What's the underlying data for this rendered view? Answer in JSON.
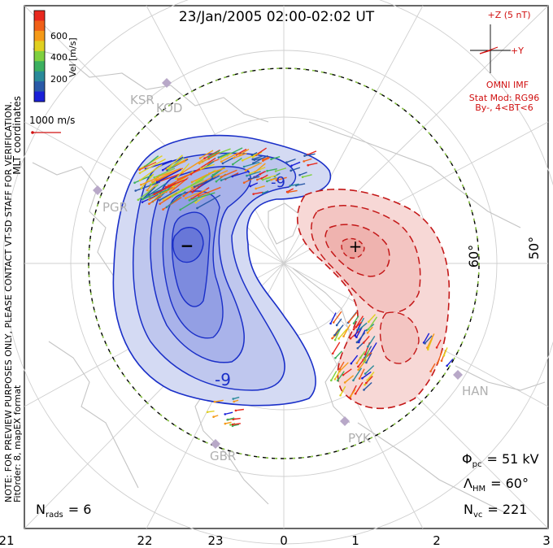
{
  "title": "23/Jan/2005 02:00-02:02 UT",
  "coords_label": "MLT coordinates",
  "colorbar": {
    "label": "Vel [m/s]",
    "ticks": [
      "600",
      "400",
      "200"
    ],
    "colors": [
      "#e8281e",
      "#f06018",
      "#f59a18",
      "#e0d020",
      "#7fd040",
      "#3cb060",
      "#2a8a9a",
      "#2a5aa8",
      "#1a20d8"
    ]
  },
  "ref_vector": {
    "label": "1000 m/s"
  },
  "side_notice": "NOTE: FOR PREVIEW PURPOSES ONLY, PLEASE CONTACT VT-SD STAFF FOR VERIFICATION.",
  "fit_order": "FitOrder: 8, mapEX format",
  "imf": {
    "z_label": "+Z (5 nT)",
    "y_label": "+Y",
    "source": "OMNI IMF",
    "stat_mod": "Stat Mod: RG96",
    "condition": "By-, 4<BT<6"
  },
  "stations": [
    "KSR",
    "KOD",
    "PGR",
    "HAN",
    "PYK",
    "GBR"
  ],
  "latitude_labels": [
    "60°",
    "50°"
  ],
  "contour_labels": [
    "-9",
    "-9"
  ],
  "markers": {
    "min": "−",
    "max": "+"
  },
  "stats": {
    "phi_pc": {
      "symbol": "Φ",
      "sub": "pc",
      "value": "= 51 kV"
    },
    "lambda_hm": {
      "symbol": "Λ",
      "sub": "HM",
      "value": "= 60°"
    },
    "n_vc": {
      "symbol": "N",
      "sub": "vc",
      "value": "= 221"
    },
    "n_rads": {
      "symbol": "N",
      "sub": "rads",
      "value": "= 6"
    }
  },
  "mlt_ticks": [
    "21",
    "22",
    "23",
    "0",
    "1",
    "2",
    "3"
  ],
  "colors": {
    "negative_contour": "#1a2fc8",
    "negative_fill": "#c8cff0",
    "positive_contour": "#c41818",
    "positive_fill": "#f7d8d6",
    "boundary": "#8fd040",
    "map_lines": "#c8c8c8"
  }
}
